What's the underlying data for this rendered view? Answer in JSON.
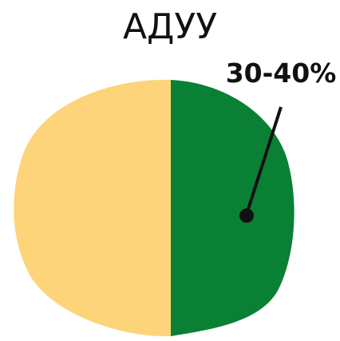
{
  "title": "АДУУ",
  "label": "30-40%"
}
